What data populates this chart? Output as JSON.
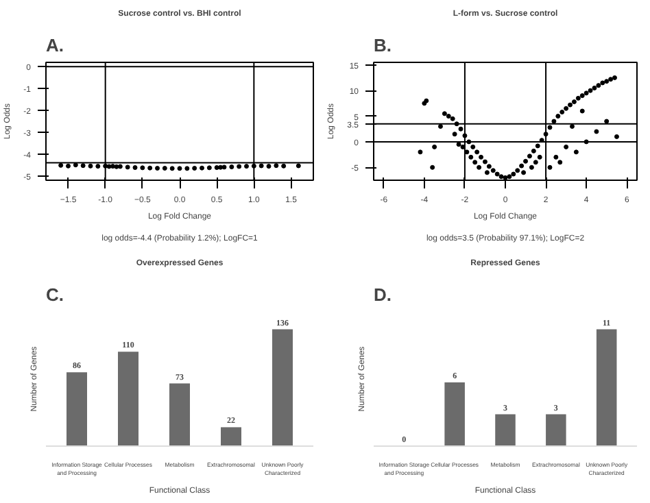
{
  "chart_data": [
    {
      "type": "scatter",
      "title": "Sucrose control vs. BHI control",
      "xlabel": "Log Fold Change",
      "ylabel": "Log Odds",
      "annotations": [
        "A.",
        "log odds=-4.4 (Probability 1.2%); LogFC=1"
      ],
      "xlim": [
        -1.8,
        1.8
      ],
      "ylim": [
        -5.2,
        0.2
      ],
      "xticks": [
        -1.5,
        {
          "value": -1,
          "label": "-1.0"
        },
        -0.5,
        {
          "value": 0,
          "label": "0.0"
        },
        0.5,
        {
          "value": 1,
          "label": "1.0"
        },
        1.5
      ],
      "yticks": [
        0,
        -1,
        -2,
        -3,
        -4,
        -5
      ],
      "grid": false,
      "marker": "circle",
      "ref_lines": [
        {
          "axis": "x",
          "value": -1,
          "color": "#000000"
        },
        {
          "axis": "x",
          "value": 1,
          "color": "#000000"
        },
        {
          "axis": "y",
          "value": 0,
          "color": "#000000"
        },
        {
          "axis": "y",
          "value": -4.4,
          "color": "#000000"
        }
      ],
      "series": [
        {
          "color": "#000000",
          "x": [
            -1.6,
            -1.5,
            -1.4,
            -1.3,
            -1.2,
            -1.1,
            -1.0,
            -0.95,
            -0.9,
            -0.85,
            -0.8,
            -0.7,
            -0.6,
            -0.5,
            -0.4,
            -0.3,
            -0.2,
            -0.1,
            0,
            0.1,
            0.2,
            0.3,
            0.4,
            0.5,
            0.55,
            0.6,
            0.7,
            0.8,
            0.9,
            1.0,
            1.1,
            1.2,
            1.3,
            1.4,
            1.6
          ],
          "values": [
            -4.52,
            -4.55,
            -4.5,
            -4.53,
            -4.55,
            -4.56,
            -4.55,
            -4.57,
            -4.56,
            -4.58,
            -4.57,
            -4.6,
            -4.62,
            -4.63,
            -4.64,
            -4.65,
            -4.65,
            -4.66,
            -4.66,
            -4.66,
            -4.65,
            -4.64,
            -4.63,
            -4.62,
            -4.61,
            -4.6,
            -4.59,
            -4.57,
            -4.56,
            -4.55,
            -4.54,
            -4.56,
            -4.53,
            -4.55,
            -4.54
          ]
        }
      ]
    },
    {
      "type": "scatter",
      "title": "L-form vs. Sucrose control",
      "xlabel": "Log Fold Change",
      "ylabel": "Log Odds",
      "annotations": [
        "B.",
        "log odds=3.5 (Probability 97.1%); LogFC=2"
      ],
      "xlim": [
        -6.5,
        6.5
      ],
      "ylim": [
        -7.5,
        15.5
      ],
      "xticks": [
        -6,
        -4,
        -2,
        0,
        2,
        4,
        6
      ],
      "yticks": [
        -5,
        0,
        3.5,
        5,
        10,
        15
      ],
      "grid": false,
      "marker": "circle",
      "ref_lines": [
        {
          "axis": "x",
          "value": -2,
          "color": "#000000"
        },
        {
          "axis": "x",
          "value": 2,
          "color": "#000000"
        },
        {
          "axis": "y",
          "value": 0,
          "color": "#000000"
        },
        {
          "axis": "y",
          "value": 3.5,
          "color": "#000000"
        }
      ],
      "series": [
        {
          "color": "#000000",
          "x": [
            0,
            -0.2,
            0.2,
            -0.4,
            0.4,
            -0.6,
            0.6,
            -0.8,
            0.8,
            -1.0,
            1.0,
            -1.2,
            1.2,
            -1.4,
            1.4,
            -1.6,
            1.6,
            -1.8,
            1.8,
            -2.0,
            2.0,
            -2.2,
            2.2,
            -2.4,
            2.4,
            -2.6,
            2.6,
            2.8,
            3.0,
            3.2,
            3.4,
            3.6,
            3.8,
            4.0,
            4.2,
            4.4,
            4.6,
            4.8,
            5.0,
            5.2,
            5.4,
            -1.5,
            -1.9,
            -2.1,
            -2.3,
            -2.5,
            -2.8,
            -3.0,
            -3.2,
            -3.5,
            -3.9,
            -4.0,
            -3.6,
            -4.2,
            1.5,
            2.5,
            3.0,
            3.5,
            4.0,
            4.5,
            5.0,
            5.5,
            2.2,
            2.7,
            3.3,
            3.8,
            -0.9,
            0.9,
            -1.3,
            1.3,
            -1.7,
            1.7
          ],
          "values": [
            -7,
            -6.8,
            -6.8,
            -6.3,
            -6.3,
            -5.6,
            -5.6,
            -4.8,
            -4.7,
            -3.9,
            -3.8,
            -3,
            -2.8,
            -2,
            -1.8,
            -1,
            -0.8,
            0,
            0.3,
            1.2,
            1.5,
            2.5,
            2.8,
            3.5,
            4,
            4.5,
            5,
            5.8,
            6.5,
            7.2,
            7.8,
            8.5,
            9,
            9.5,
            10,
            10.5,
            11,
            11.5,
            11.8,
            12.2,
            12.5,
            -4,
            -2,
            -1,
            -0.5,
            1.5,
            5,
            5.5,
            3,
            -1,
            8,
            7.5,
            -5,
            -2,
            -4,
            -3,
            -1,
            -2,
            0,
            2,
            4,
            1,
            -5,
            -4,
            3,
            6,
            -6,
            -6,
            -5,
            -5,
            -3,
            -3
          ]
        }
      ]
    },
    {
      "type": "bar",
      "title": "Overexpressed Genes",
      "xlabel": "Functional Class",
      "ylabel": "Number of Genes",
      "annotations": [
        "C."
      ],
      "categories": [
        "Information Storage\nand Processing",
        "Cellular Processes",
        "Metabolism",
        "Extrachromosomal",
        "Unknown Poorly\nCharacterized"
      ],
      "values": [
        86,
        110,
        73,
        22,
        136
      ],
      "color": "#6b6b6b",
      "data_labels": true,
      "grid": false
    },
    {
      "type": "bar",
      "title": "Repressed Genes",
      "xlabel": "Functional Class",
      "ylabel": "Number of Genes",
      "annotations": [
        "D."
      ],
      "categories": [
        "Information Storage\nand Processing",
        "Cellular Processes",
        "Metabolism",
        "Extrachromosomal",
        "Unknown Poorly\nCharacterized"
      ],
      "values": [
        0,
        6,
        3,
        3,
        11
      ],
      "color": "#6b6b6b",
      "data_labels": true,
      "grid": false
    }
  ]
}
